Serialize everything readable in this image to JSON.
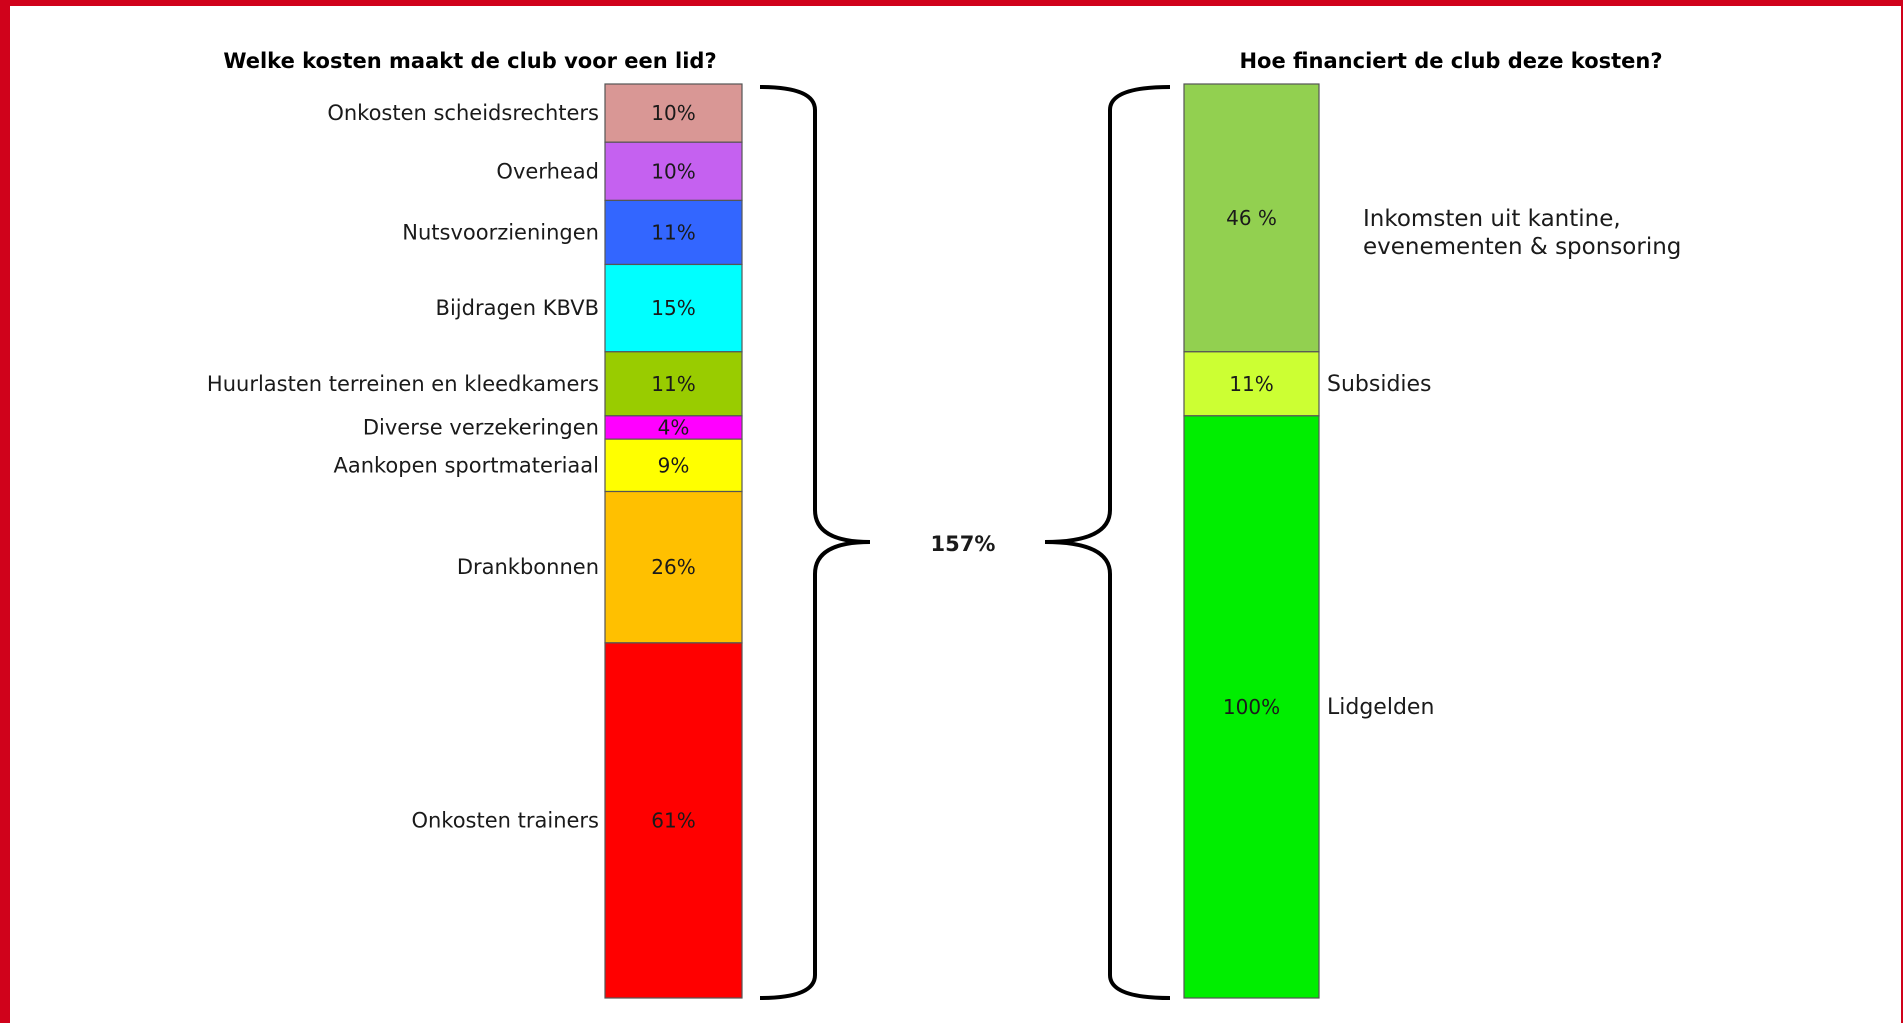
{
  "chart_data": [
    {
      "type": "bar",
      "title": "Welke kosten maakt de club voor een lid?",
      "categories": [
        "Onkosten scheidsrechters",
        "Overhead",
        "Nutsvoorzieningen",
        "Bijdragen KBVB",
        "Huurlasten terreinen en kleedkamers",
        "Diverse verzekeringen",
        "Aankopen sportmateriaal",
        "Drankbonnen",
        "Onkosten trainers"
      ],
      "values": [
        10,
        10,
        11,
        15,
        11,
        4,
        9,
        26,
        61
      ],
      "labels": [
        "10%",
        "10%",
        "11%",
        "15%",
        "11%",
        "4%",
        "9%",
        "26%",
        "61%"
      ],
      "colors": [
        "#d99795",
        "#c561f0",
        "#3366ff",
        "#00ffff",
        "#99cc00",
        "#ff00ff",
        "#ffff00",
        "#ffc000",
        "#ff0000"
      ],
      "stacked": true,
      "total_label": "157%"
    },
    {
      "type": "bar",
      "title": "Hoe financiert de club deze kosten?",
      "categories": [
        "Inkomsten uit kantine, evenementen & sponsoring",
        "Subsidies",
        "Lidgelden"
      ],
      "values": [
        46,
        11,
        100
      ],
      "labels": [
        "46 %",
        "11%",
        "100%"
      ],
      "colors": [
        "#92d050",
        "#ccff33",
        "#00ee00"
      ],
      "stacked": true,
      "annotation_lines": [
        "Inkomsten uit kantine,",
        "evenementen & sponsoring"
      ]
    }
  ]
}
